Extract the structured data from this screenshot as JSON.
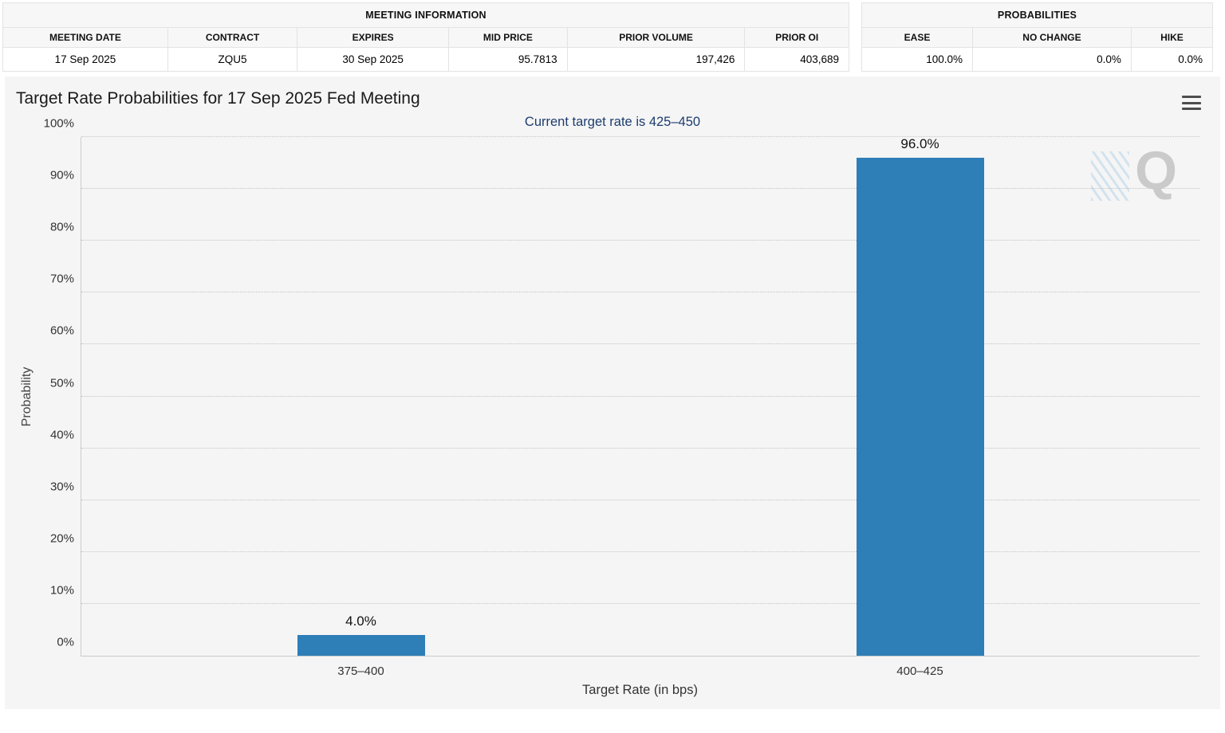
{
  "meeting_info": {
    "title": "MEETING INFORMATION",
    "columns": [
      "MEETING DATE",
      "CONTRACT",
      "EXPIRES",
      "MID PRICE",
      "PRIOR VOLUME",
      "PRIOR OI"
    ],
    "values": [
      "17 Sep 2025",
      "ZQU5",
      "30 Sep 2025",
      "95.7813",
      "197,426",
      "403,689"
    ]
  },
  "probabilities": {
    "title": "PROBABILITIES",
    "columns": [
      "EASE",
      "NO CHANGE",
      "HIKE"
    ],
    "values": [
      "100.0%",
      "0.0%",
      "0.0%"
    ]
  },
  "chart_data": {
    "type": "bar",
    "title": "Target Rate Probabilities for 17 Sep 2025 Fed Meeting",
    "subtitle": "Current target rate is 425–450",
    "categories": [
      "375–400",
      "400–425"
    ],
    "values": [
      4.0,
      96.0
    ],
    "value_labels": [
      "4.0%",
      "96.0%"
    ],
    "xlabel": "Target Rate (in bps)",
    "ylabel": "Probability",
    "ylim": [
      0,
      100
    ],
    "yticks": [
      "0%",
      "10%",
      "20%",
      "30%",
      "40%",
      "50%",
      "60%",
      "70%",
      "80%",
      "90%",
      "100%"
    ],
    "grid": true,
    "legend": false,
    "bar_color": "#2e7eb8",
    "subtitle_color": "#1d3c6e",
    "watermark": "Q"
  },
  "icons": {
    "menu": "hamburger-icon"
  }
}
